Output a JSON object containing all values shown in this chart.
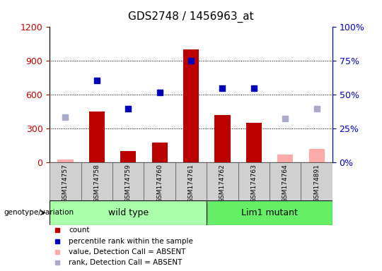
{
  "title": "GDS2748 / 1456963_at",
  "samples": [
    "GSM174757",
    "GSM174758",
    "GSM174759",
    "GSM174760",
    "GSM174761",
    "GSM174762",
    "GSM174763",
    "GSM174764",
    "GSM174891"
  ],
  "count_values": [
    null,
    450,
    100,
    180,
    1000,
    420,
    350,
    null,
    null
  ],
  "count_absent": [
    30,
    null,
    null,
    null,
    null,
    null,
    null,
    70,
    120
  ],
  "rank_values": [
    null,
    730,
    480,
    620,
    900,
    660,
    660,
    null,
    null
  ],
  "rank_absent": [
    400,
    null,
    null,
    null,
    null,
    null,
    null,
    390,
    480
  ],
  "ylim_left": [
    0,
    1200
  ],
  "ylim_right": [
    0,
    100
  ],
  "yticks_left": [
    0,
    300,
    600,
    900,
    1200
  ],
  "yticks_right": [
    0,
    25,
    50,
    75,
    100
  ],
  "bar_color_red": "#bb0000",
  "bar_color_pink": "#ffaaaa",
  "dot_color_blue": "#0000bb",
  "dot_color_lightblue": "#aaaacc",
  "left_axis_color": "#cc0000",
  "right_axis_color": "#0000cc",
  "bg_xticklabels": "#d0d0d0",
  "bg_groups_light": "#ccffcc",
  "bg_groups_mid": "#88ee88",
  "legend_items": [
    {
      "label": "count",
      "color": "#bb0000",
      "marker": "s"
    },
    {
      "label": "percentile rank within the sample",
      "color": "#0000bb",
      "marker": "s"
    },
    {
      "label": "value, Detection Call = ABSENT",
      "color": "#ffaaaa",
      "marker": "s"
    },
    {
      "label": "rank, Detection Call = ABSENT",
      "color": "#aaaacc",
      "marker": "s"
    }
  ]
}
